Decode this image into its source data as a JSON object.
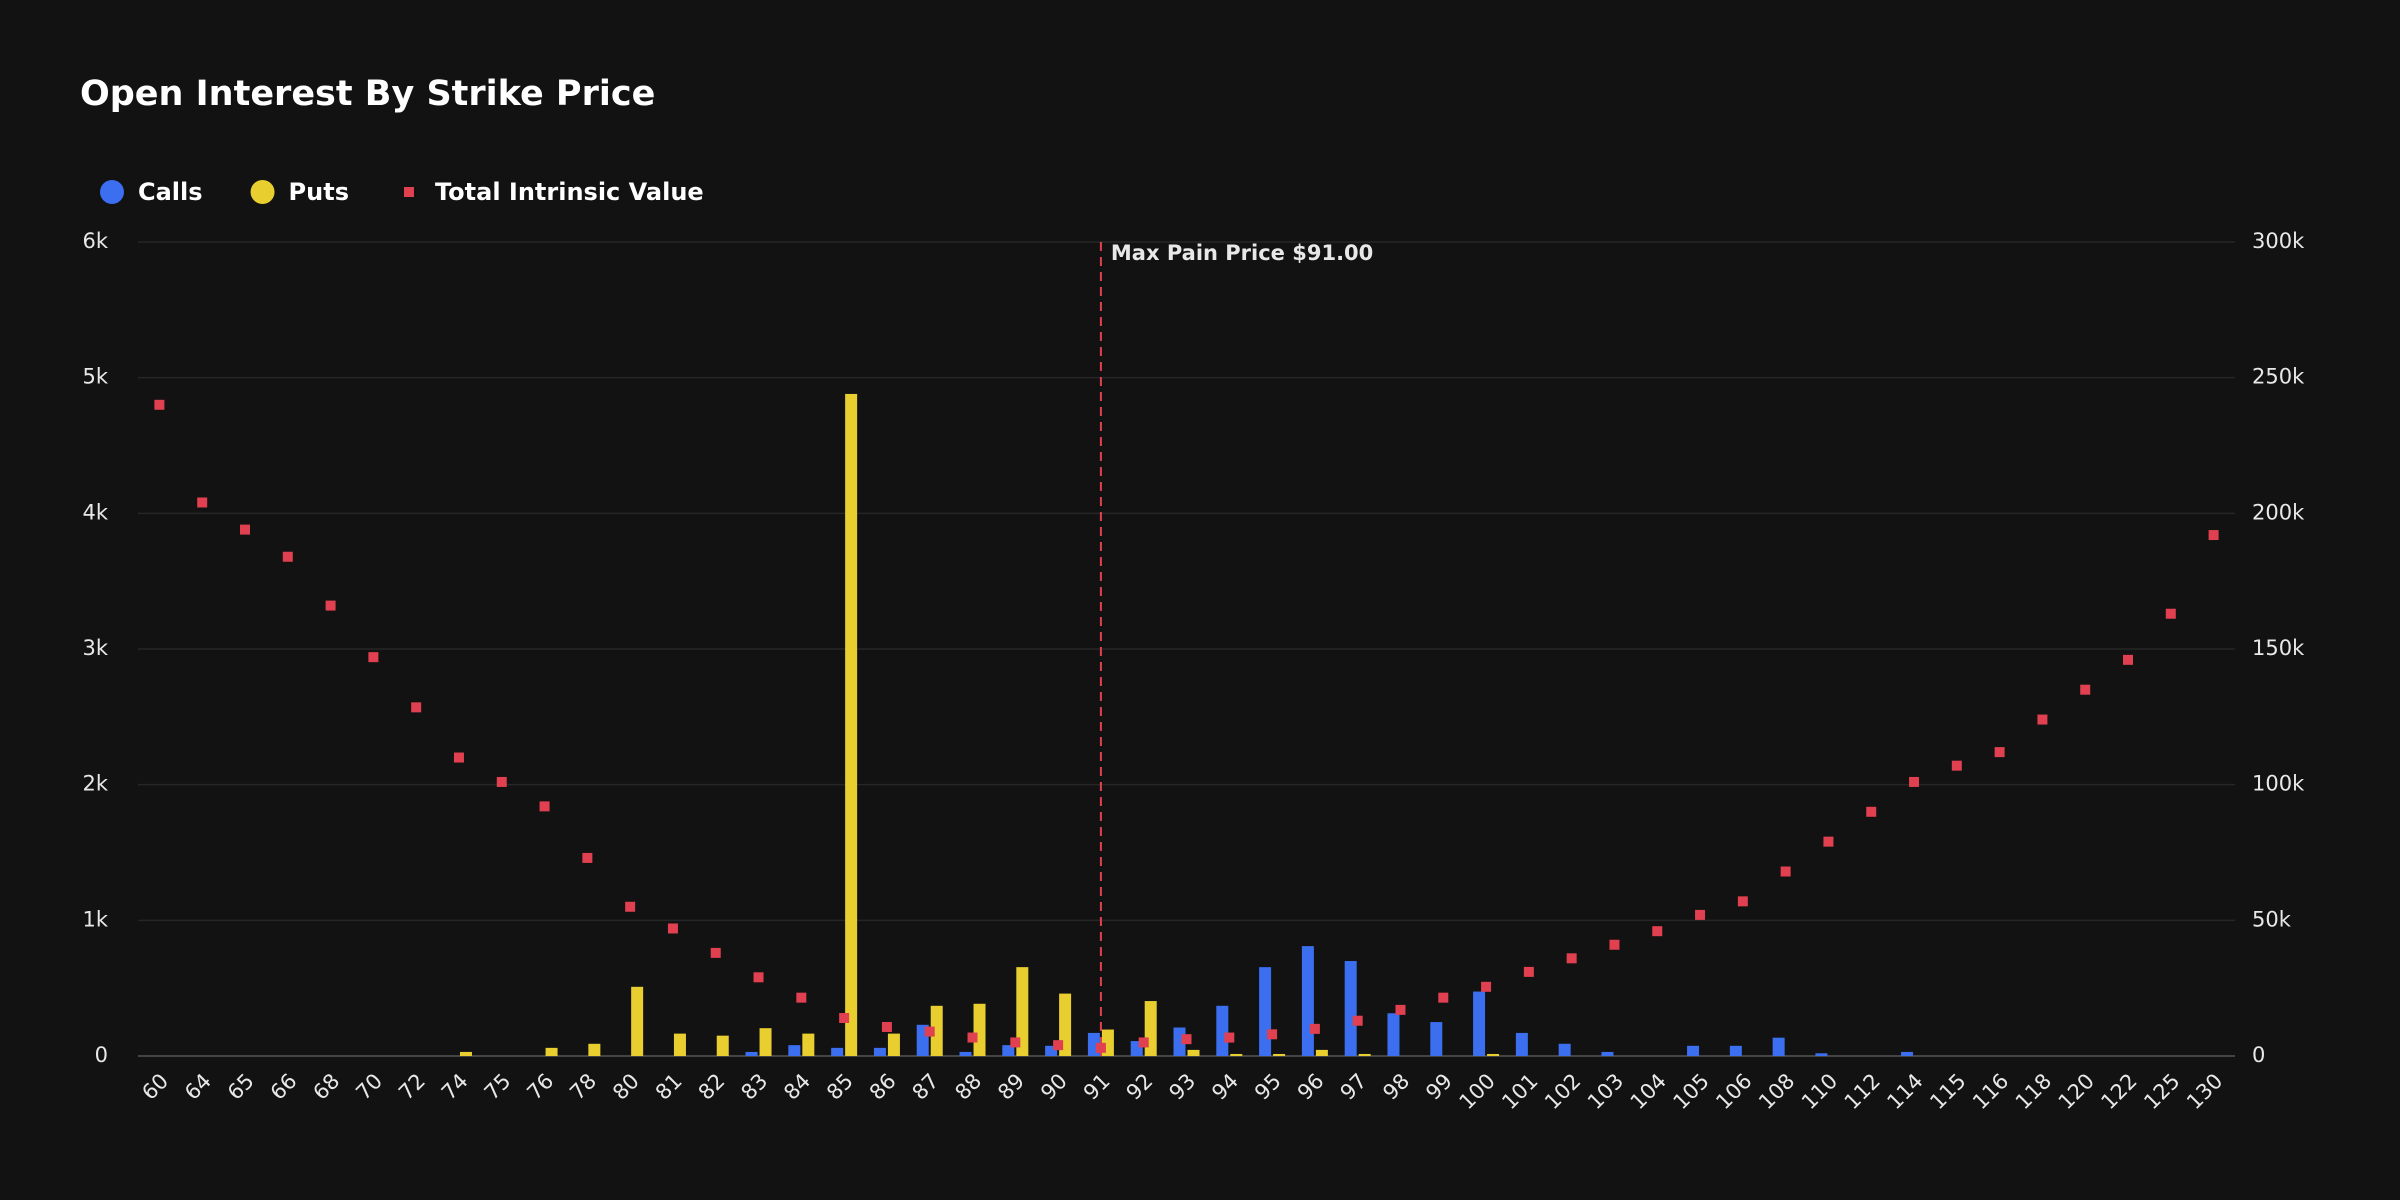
{
  "chart_data": {
    "type": "bar",
    "title": "Open Interest By Strike Price",
    "categories": [
      "60",
      "64",
      "65",
      "66",
      "68",
      "70",
      "72",
      "74",
      "75",
      "76",
      "78",
      "80",
      "81",
      "82",
      "83",
      "84",
      "85",
      "86",
      "87",
      "88",
      "89",
      "90",
      "91",
      "92",
      "93",
      "94",
      "95",
      "96",
      "97",
      "98",
      "99",
      "100",
      "101",
      "102",
      "103",
      "104",
      "105",
      "106",
      "108",
      "110",
      "112",
      "114",
      "115",
      "116",
      "118",
      "120",
      "122",
      "125",
      "130"
    ],
    "series": [
      {
        "name": "Calls",
        "color": "#3b6ff0",
        "type": "bar",
        "values": [
          0,
          0,
          0,
          0,
          0,
          0,
          0,
          0,
          0,
          0,
          0,
          0,
          0,
          0,
          30,
          80,
          60,
          60,
          230,
          30,
          80,
          75,
          170,
          110,
          210,
          370,
          655,
          810,
          700,
          315,
          250,
          475,
          170,
          90,
          30,
          0,
          75,
          75,
          135,
          20,
          0,
          30,
          0,
          0,
          0,
          0,
          0,
          0,
          0
        ]
      },
      {
        "name": "Puts",
        "color": "#e8cf2f",
        "type": "bar",
        "values": [
          0,
          0,
          0,
          0,
          0,
          0,
          0,
          30,
          0,
          60,
          90,
          510,
          165,
          150,
          205,
          165,
          4880,
          165,
          370,
          385,
          655,
          460,
          195,
          405,
          45,
          15,
          15,
          45,
          15,
          0,
          0,
          15,
          0,
          0,
          0,
          0,
          0,
          0,
          0,
          0,
          0,
          0,
          0,
          0,
          0,
          0,
          0,
          0,
          0
        ]
      },
      {
        "name": "Total Intrinsic Value",
        "color": "#e0404f",
        "type": "scatter",
        "axis": "y2",
        "values": [
          240000,
          204000,
          194000,
          184000,
          166000,
          147000,
          128500,
          110000,
          101000,
          92000,
          73000,
          55000,
          47000,
          38000,
          29000,
          21500,
          14000,
          10700,
          9000,
          6800,
          5000,
          4000,
          3000,
          5000,
          6200,
          6800,
          8000,
          10000,
          13000,
          17000,
          21500,
          25500,
          31000,
          36000,
          41000,
          46000,
          52000,
          57000,
          68000,
          79000,
          90000,
          101000,
          107000,
          112000,
          124000,
          135000,
          146000,
          163000,
          192000
        ]
      }
    ],
    "ylim": [
      0,
      6000
    ],
    "yticks": [
      0,
      {
        "value": 1000,
        "label": "1k"
      },
      {
        "value": 2000,
        "label": "2k"
      },
      {
        "value": 3000,
        "label": "3k"
      },
      {
        "value": 4000,
        "label": "4k"
      },
      {
        "value": 5000,
        "label": "5k"
      },
      {
        "value": 6000,
        "label": "6k"
      }
    ],
    "y2lim": [
      0,
      300000
    ],
    "y2ticks": [
      0,
      {
        "value": 50000,
        "label": "50k"
      },
      {
        "value": 100000,
        "label": "100k"
      },
      {
        "value": 150000,
        "label": "150k"
      },
      {
        "value": 200000,
        "label": "200k"
      },
      {
        "value": 250000,
        "label": "250k"
      },
      {
        "value": 300000,
        "label": "300k"
      }
    ],
    "grid": true,
    "legend": "top-left",
    "annotation": {
      "text": "Max Pain Price $91.00",
      "category": "91",
      "color": "#e0404f"
    }
  }
}
